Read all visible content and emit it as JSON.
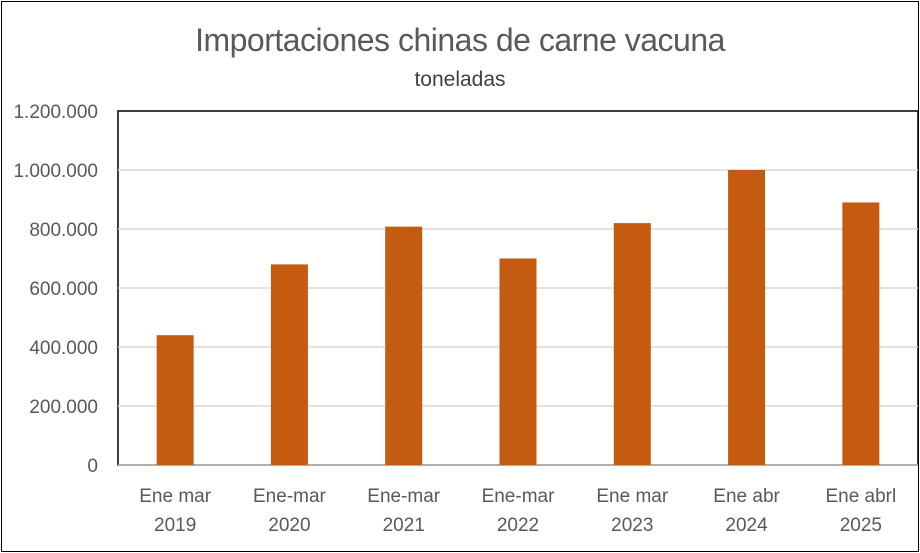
{
  "chart_data": {
    "type": "bar",
    "title": "Importaciones chinas de carne vacuna",
    "subtitle": "toneladas",
    "categories": [
      [
        "Ene mar",
        "2019"
      ],
      [
        "Ene-mar",
        "2020"
      ],
      [
        "Ene-mar",
        "2021"
      ],
      [
        "Ene-mar",
        "2022"
      ],
      [
        "Ene mar",
        "2023"
      ],
      [
        "Ene abr",
        "2024"
      ],
      [
        "Ene abrl",
        "2025"
      ]
    ],
    "values": [
      440000,
      680000,
      808000,
      700000,
      820000,
      1000000,
      890000
    ],
    "ylim": [
      0,
      1200000
    ],
    "yticks": [
      0,
      200000,
      400000,
      600000,
      800000,
      1000000,
      1200000
    ],
    "ytick_labels": [
      "0",
      "200.000",
      "400.000",
      "600.000",
      "800.000",
      "1.000.000",
      "1.200.000"
    ],
    "bar_color": "#C55A11",
    "grid": true,
    "legend": "none"
  }
}
